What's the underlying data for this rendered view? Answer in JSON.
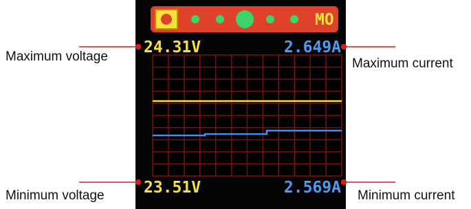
{
  "screen": {
    "mode": "MO",
    "max_voltage": "24.31V",
    "max_current": "2.649A",
    "min_voltage": "23.51V",
    "min_current": "2.569A"
  },
  "callouts": {
    "max_voltage": "Maximum voltage",
    "max_current": "Maximum current",
    "min_voltage": "Minimum voltage",
    "min_current": "Minimum current"
  }
}
